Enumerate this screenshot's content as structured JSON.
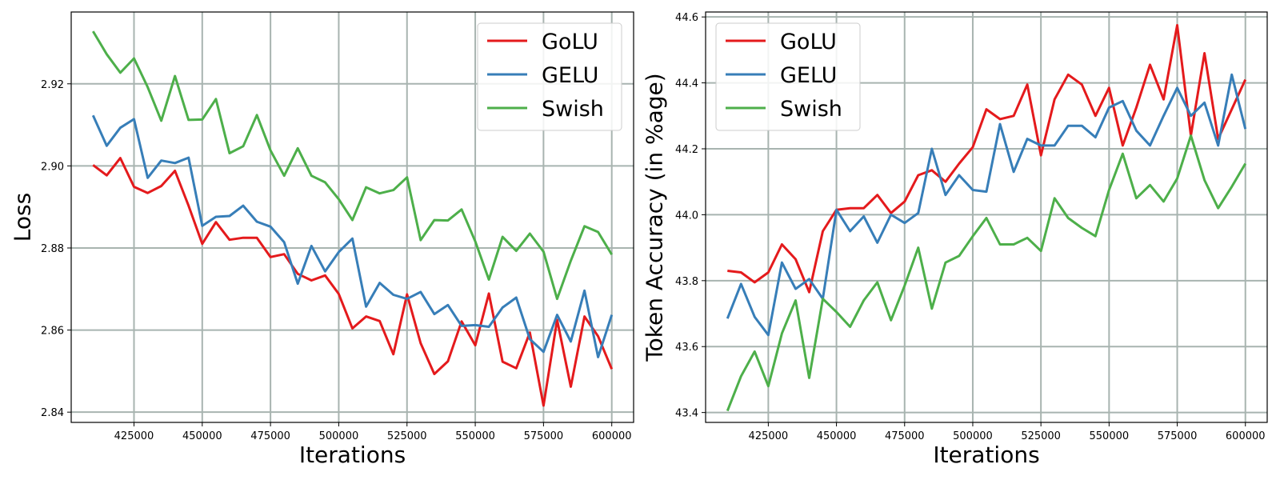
{
  "chart_data": [
    {
      "type": "line",
      "xlabel": "Iterations",
      "ylabel": "Loss",
      "xlim": [
        402000,
        608000
      ],
      "ylim": [
        2.8375,
        2.9375
      ],
      "xticks": [
        425000,
        450000,
        475000,
        500000,
        525000,
        550000,
        575000,
        600000
      ],
      "xtick_labels": [
        "425000",
        "450000",
        "475000",
        "500000",
        "525000",
        "550000",
        "575000",
        "600000"
      ],
      "yticks": [
        2.84,
        2.86,
        2.88,
        2.9,
        2.92
      ],
      "ytick_labels": [
        "2.84",
        "2.86",
        "2.88",
        "2.90",
        "2.92"
      ],
      "grid": true,
      "legend_position": "top-right",
      "x": [
        410000,
        415000,
        420000,
        425000,
        430000,
        435000,
        440000,
        445000,
        450000,
        455000,
        460000,
        465000,
        470000,
        475000,
        480000,
        485000,
        490000,
        495000,
        500000,
        505000,
        510000,
        515000,
        520000,
        525000,
        530000,
        535000,
        540000,
        545000,
        550000,
        555000,
        560000,
        565000,
        570000,
        575000,
        580000,
        585000,
        590000,
        595000,
        600000
      ],
      "series": [
        {
          "name": "GoLU",
          "color": "#e41a1c",
          "values": [
            2.9002,
            2.8977,
            2.9019,
            2.8949,
            2.8934,
            2.8951,
            2.8988,
            2.8903,
            2.881,
            2.8863,
            2.882,
            2.8825,
            2.8825,
            2.8778,
            2.8785,
            2.8737,
            2.8721,
            2.8733,
            2.8688,
            2.8604,
            2.8633,
            2.8622,
            2.8541,
            2.8687,
            2.8568,
            2.8493,
            2.8524,
            2.8621,
            2.8563,
            2.8689,
            2.8523,
            2.8507,
            2.8594,
            2.8416,
            2.8625,
            2.8462,
            2.8633,
            2.8585,
            2.8505
          ]
        },
        {
          "name": "GELU",
          "color": "#377eb8",
          "values": [
            2.9123,
            2.9049,
            2.9093,
            2.9114,
            2.8971,
            2.9013,
            2.9007,
            2.902,
            2.8854,
            2.8876,
            2.8878,
            2.8903,
            2.8864,
            2.8852,
            2.8814,
            2.8713,
            2.8805,
            2.8743,
            2.879,
            2.8823,
            2.8657,
            2.8715,
            2.8686,
            2.8676,
            2.8693,
            2.8639,
            2.8661,
            2.861,
            2.8612,
            2.8608,
            2.8655,
            2.8679,
            2.8578,
            2.8547,
            2.8637,
            2.8572,
            2.8696,
            2.8534,
            2.8637
          ]
        },
        {
          "name": "Swish",
          "color": "#4daf4a",
          "values": [
            2.9328,
            2.9272,
            2.9227,
            2.9262,
            2.9192,
            2.911,
            2.9219,
            2.9112,
            2.9113,
            2.9163,
            2.9031,
            2.9048,
            2.9124,
            2.9038,
            2.8976,
            2.9043,
            2.8976,
            2.896,
            2.8919,
            2.8868,
            2.8948,
            2.8933,
            2.8941,
            2.8972,
            2.8819,
            2.8868,
            2.8867,
            2.8894,
            2.8816,
            2.8723,
            2.8827,
            2.8793,
            2.8835,
            2.8791,
            2.8676,
            2.8769,
            2.8853,
            2.8839,
            2.8784
          ]
        }
      ]
    },
    {
      "type": "line",
      "xlabel": "Iterations",
      "ylabel": "Token Accuracy (in %age)",
      "xlim": [
        402000,
        608000
      ],
      "ylim": [
        43.37,
        44.615
      ],
      "xticks": [
        425000,
        450000,
        475000,
        500000,
        525000,
        550000,
        575000,
        600000
      ],
      "xtick_labels": [
        "425000",
        "450000",
        "475000",
        "500000",
        "525000",
        "550000",
        "575000",
        "600000"
      ],
      "yticks": [
        43.4,
        43.6,
        43.8,
        44.0,
        44.2,
        44.4,
        44.6
      ],
      "ytick_labels": [
        "43.4",
        "43.6",
        "43.8",
        "44.0",
        "44.2",
        "44.4",
        "44.6"
      ],
      "grid": true,
      "legend_position": "top-left",
      "x": [
        410000,
        415000,
        420000,
        425000,
        430000,
        435000,
        440000,
        445000,
        450000,
        455000,
        460000,
        465000,
        470000,
        475000,
        480000,
        485000,
        490000,
        495000,
        500000,
        505000,
        510000,
        515000,
        520000,
        525000,
        530000,
        535000,
        540000,
        545000,
        550000,
        555000,
        560000,
        565000,
        570000,
        575000,
        580000,
        585000,
        590000,
        595000,
        600000
      ],
      "series": [
        {
          "name": "GoLU",
          "color": "#e41a1c",
          "values": [
            43.83,
            43.825,
            43.795,
            43.825,
            43.91,
            43.865,
            43.765,
            43.95,
            44.015,
            44.02,
            44.02,
            44.06,
            44.005,
            44.04,
            44.12,
            44.135,
            44.1,
            44.155,
            44.205,
            44.32,
            44.29,
            44.3,
            44.395,
            44.18,
            44.35,
            44.425,
            44.395,
            44.3,
            44.385,
            44.21,
            44.325,
            44.455,
            44.35,
            44.575,
            44.24,
            44.49,
            44.23,
            44.32,
            44.41
          ]
        },
        {
          "name": "GELU",
          "color": "#377eb8",
          "values": [
            43.685,
            43.79,
            43.69,
            43.635,
            43.855,
            43.775,
            43.805,
            43.745,
            44.015,
            43.95,
            43.995,
            43.915,
            44.0,
            43.975,
            44.005,
            44.2,
            44.06,
            44.12,
            44.075,
            44.07,
            44.275,
            44.13,
            44.23,
            44.21,
            44.21,
            44.27,
            44.27,
            44.235,
            44.325,
            44.345,
            44.255,
            44.21,
            44.3,
            44.385,
            44.3,
            44.34,
            44.21,
            44.425,
            44.26
          ]
        },
        {
          "name": "Swish",
          "color": "#4daf4a",
          "values": [
            43.405,
            43.51,
            43.585,
            43.48,
            43.64,
            43.74,
            43.505,
            43.745,
            43.705,
            43.66,
            43.74,
            43.795,
            43.68,
            43.785,
            43.9,
            43.715,
            43.855,
            43.875,
            43.935,
            43.99,
            43.91,
            43.91,
            43.93,
            43.89,
            44.05,
            43.99,
            43.96,
            43.935,
            44.075,
            44.185,
            44.05,
            44.09,
            44.04,
            44.11,
            44.24,
            44.105,
            44.02,
            44.085,
            44.155
          ]
        }
      ]
    }
  ]
}
